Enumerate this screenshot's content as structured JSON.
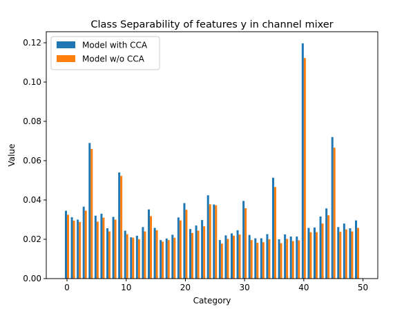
{
  "chart_data": {
    "type": "bar",
    "title": "Class Separability of features y in channel mixer",
    "xlabel": "Category",
    "ylabel": "Value",
    "xlim": [
      -3.5,
      52.5
    ],
    "ylim": [
      0.0,
      0.1256
    ],
    "x_ticks": [
      0,
      10,
      20,
      30,
      40,
      50
    ],
    "x_tick_labels": [
      "0",
      "10",
      "20",
      "30",
      "40",
      "50"
    ],
    "y_ticks": [
      0.0,
      0.02,
      0.04,
      0.06,
      0.08,
      0.1,
      0.12
    ],
    "y_tick_labels": [
      "0.00",
      "0.02",
      "0.04",
      "0.06",
      "0.08",
      "0.10",
      "0.12"
    ],
    "grid": false,
    "legend_position": "top-left",
    "bar_width": 0.35,
    "categories": [
      0,
      1,
      2,
      3,
      4,
      5,
      6,
      7,
      8,
      9,
      10,
      11,
      12,
      13,
      14,
      15,
      16,
      17,
      18,
      19,
      20,
      21,
      22,
      23,
      24,
      25,
      26,
      27,
      28,
      29,
      30,
      31,
      32,
      33,
      34,
      35,
      36,
      37,
      38,
      39,
      40,
      41,
      42,
      43,
      44,
      45,
      46,
      47,
      48,
      49
    ],
    "series": [
      {
        "name": "Model with CCA",
        "color": "#1f77b4",
        "values": [
          0.0345,
          0.0312,
          0.03,
          0.0366,
          0.069,
          0.032,
          0.033,
          0.0256,
          0.0314,
          0.054,
          0.0244,
          0.021,
          0.0218,
          0.0262,
          0.0352,
          0.0258,
          0.0196,
          0.0204,
          0.0223,
          0.0311,
          0.0384,
          0.0252,
          0.027,
          0.0298,
          0.0424,
          0.0377,
          0.0196,
          0.022,
          0.023,
          0.0246,
          0.0395,
          0.0222,
          0.0205,
          0.0205,
          0.0226,
          0.0513,
          0.02,
          0.0225,
          0.0214,
          0.0214,
          0.1197,
          0.0258,
          0.026,
          0.0316,
          0.0357,
          0.072,
          0.0262,
          0.028,
          0.0256,
          0.0296
        ]
      },
      {
        "name": "Model w/o CCA",
        "color": "#ff7f0e",
        "values": [
          0.0325,
          0.0295,
          0.0288,
          0.0346,
          0.066,
          0.029,
          0.031,
          0.024,
          0.03,
          0.0522,
          0.0226,
          0.0208,
          0.02,
          0.024,
          0.0318,
          0.0246,
          0.0188,
          0.0196,
          0.0208,
          0.0296,
          0.035,
          0.0232,
          0.0244,
          0.0266,
          0.0378,
          0.0373,
          0.0178,
          0.0202,
          0.0218,
          0.0224,
          0.0358,
          0.0196,
          0.0182,
          0.0185,
          0.02,
          0.0466,
          0.018,
          0.0202,
          0.0191,
          0.0195,
          0.1122,
          0.0236,
          0.0236,
          0.028,
          0.0322,
          0.0666,
          0.0238,
          0.025,
          0.024,
          0.0258
        ]
      }
    ]
  }
}
